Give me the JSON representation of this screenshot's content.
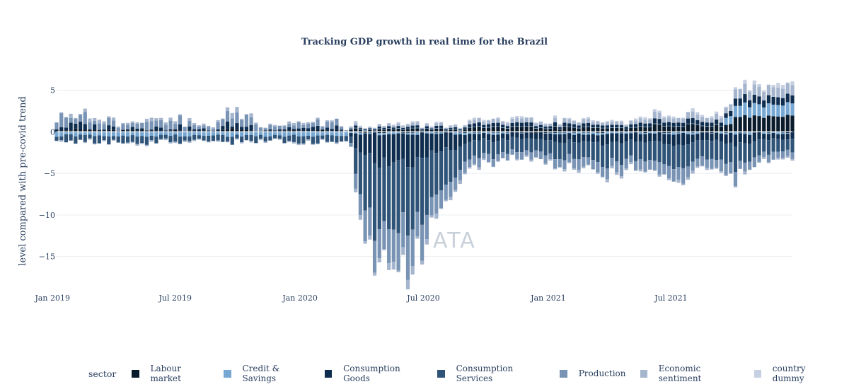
{
  "chart_data": {
    "type": "bar",
    "stacked": true,
    "title": "Tracking GDP growth in real time for the Brazil",
    "xlabel": "",
    "ylabel": "level compared with pre-covid trend",
    "ylim": [
      -18,
      6.5
    ],
    "yticks": [
      5,
      0,
      -5,
      -10,
      -15
    ],
    "ytick_labels": [
      "5",
      "0",
      "−5",
      "−10",
      "−15"
    ],
    "xticks": [
      "Jan 2019",
      "Jul 2019",
      "Jan 2020",
      "Jul 2020",
      "Jan 2021",
      "Jul 2021"
    ],
    "x_start": "2019-01-07",
    "x_end": "2021-12-27",
    "frequency": "weekly",
    "watermark": "ATA",
    "legend": {
      "title": "sector",
      "position": "bottom"
    },
    "series_colors": [
      "#0a1b2c",
      "#76a8d3",
      "#0f2d4e",
      "#2f5478",
      "#7893b4",
      "#a5b5cd",
      "#c6d0e2"
    ],
    "key_points": [
      {
        "date": "2019-01-07",
        "total": 3.5
      },
      {
        "date": "2019-02-01",
        "total": 3.0
      },
      {
        "date": "2019-04-01",
        "total": 1.8
      },
      {
        "date": "2019-07-01",
        "total": 2.1
      },
      {
        "date": "2019-08-20",
        "total": 0.9
      },
      {
        "date": "2019-10-01",
        "total": 3.8
      },
      {
        "date": "2019-11-15",
        "total": 0.9
      },
      {
        "date": "2020-01-15",
        "total": 2.0
      },
      {
        "date": "2020-02-28",
        "total": 1.5
      },
      {
        "date": "2020-03-15",
        "total": -0.9
      },
      {
        "date": "2020-04-01",
        "total": -11.5
      },
      {
        "date": "2020-04-20",
        "total": -15.0
      },
      {
        "date": "2020-06-01",
        "total": -16.5
      },
      {
        "date": "2020-06-10",
        "total": -17.0
      },
      {
        "date": "2020-07-01",
        "total": -13.0
      },
      {
        "date": "2020-08-01",
        "total": -9.0
      },
      {
        "date": "2020-09-01",
        "total": -4.5
      },
      {
        "date": "2020-11-01",
        "total": -2.8
      },
      {
        "date": "2021-01-15",
        "total": -3.8
      },
      {
        "date": "2021-03-01",
        "total": -3.8
      },
      {
        "date": "2021-04-01",
        "total": -4.8
      },
      {
        "date": "2021-06-01",
        "total": -4.0
      },
      {
        "date": "2021-07-01",
        "total": -6.0
      },
      {
        "date": "2021-09-01",
        "total": -4.5
      },
      {
        "date": "2021-10-01",
        "total": -5.5
      },
      {
        "date": "2021-12-01",
        "total": -3.0
      }
    ],
    "series": [
      {
        "name": "Labour market"
      },
      {
        "name": "Credit & Savings"
      },
      {
        "name": "Consumption Goods"
      },
      {
        "name": "Consumption Services"
      },
      {
        "name": "Production"
      },
      {
        "name": "Economic sentiment"
      },
      {
        "name": "country dummy"
      }
    ]
  }
}
